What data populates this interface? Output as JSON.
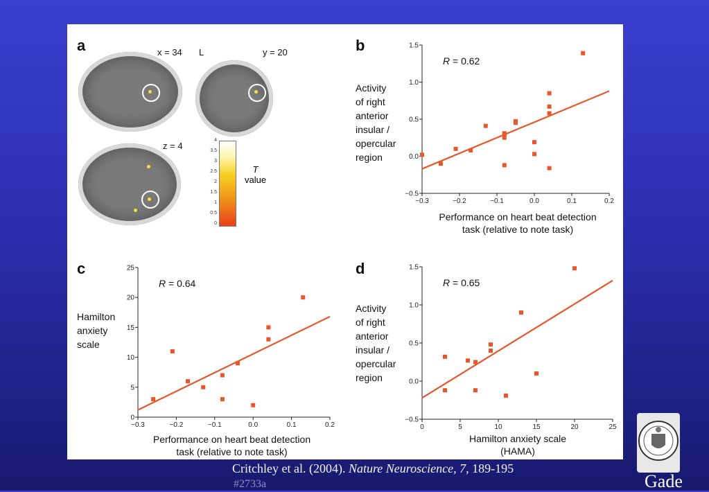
{
  "panel_a": {
    "letter": "a",
    "slice_x": "x = 34",
    "slice_L": "L",
    "slice_y": "y = 20",
    "slice_z": "z = 4",
    "colorbar_ticks": [
      "4",
      "3.5",
      "3",
      "2.5",
      "2",
      "1.5",
      "1",
      "0.5",
      "0"
    ],
    "colorbar_label_T": "T",
    "colorbar_label_value": "value"
  },
  "panel_b": {
    "letter": "b",
    "ylabel_lines": [
      "Activity",
      "of right",
      "anterior",
      "insular /",
      "opercular",
      "region"
    ],
    "xlabel_lines": [
      "Performance on heart beat detection",
      "task (relative to note task)"
    ]
  },
  "panel_c": {
    "letter": "c",
    "ylabel_lines": [
      "Hamilton",
      "anxiety",
      "scale"
    ],
    "xlabel_lines": [
      "Performance on heart beat detection",
      "task (relative to note task)"
    ]
  },
  "panel_d": {
    "letter": "d",
    "ylabel_lines": [
      "Activity",
      "of right",
      "anterior",
      "insular /",
      "opercular",
      "region"
    ],
    "xlabel_lines": [
      "Hamilton anxiety scale",
      "(HAMA)"
    ]
  },
  "chart_data": [
    {
      "panel": "b",
      "type": "scatter",
      "annotation": "R = 0.62",
      "xlim": [
        -0.3,
        0.2
      ],
      "ylim": [
        -0.5,
        1.5
      ],
      "xticks": [
        "−0.3",
        "−0.2",
        "−0.1",
        "0.0",
        "0.1",
        "0.2"
      ],
      "xtick_values": [
        -0.3,
        -0.2,
        -0.1,
        0.0,
        0.1,
        0.2
      ],
      "yticks": [
        "−0.5",
        "0.0",
        "0.5",
        "1.0",
        "1.5"
      ],
      "ytick_values": [
        -0.5,
        0.0,
        0.5,
        1.0,
        1.5
      ],
      "x": [
        -0.3,
        -0.25,
        -0.21,
        -0.17,
        -0.13,
        -0.08,
        -0.08,
        -0.08,
        -0.08,
        -0.05,
        -0.05,
        0.0,
        0.0,
        0.04,
        0.04,
        0.04,
        0.04,
        0.13
      ],
      "y": [
        0.02,
        -0.1,
        0.1,
        0.08,
        0.41,
        0.3,
        0.25,
        0.31,
        -0.12,
        0.45,
        0.47,
        0.19,
        0.03,
        0.85,
        0.67,
        0.58,
        -0.16,
        1.39
      ],
      "fit_line": {
        "x": [
          -0.3,
          0.2
        ],
        "y": [
          -0.17,
          0.88
        ]
      },
      "grid": false,
      "color": "#e8562b"
    },
    {
      "panel": "c",
      "type": "scatter",
      "annotation": "R = 0.64",
      "xlim": [
        -0.3,
        0.2
      ],
      "ylim": [
        0,
        25
      ],
      "xticks": [
        "−0.3",
        "−0.2",
        "−0.1",
        "0.0",
        "0.1",
        "0.2"
      ],
      "xtick_values": [
        -0.3,
        -0.2,
        -0.1,
        0.0,
        0.1,
        0.2
      ],
      "yticks": [
        "0",
        "5",
        "10",
        "15",
        "20",
        "25"
      ],
      "ytick_values": [
        0,
        5,
        10,
        15,
        20,
        25
      ],
      "x": [
        -0.26,
        -0.21,
        -0.17,
        -0.13,
        -0.08,
        -0.08,
        -0.04,
        0.0,
        0.04,
        0.04,
        0.13
      ],
      "y": [
        3,
        11,
        6,
        5,
        7,
        3,
        9,
        2,
        15,
        13,
        20
      ],
      "fit_line": {
        "x": [
          -0.3,
          0.2
        ],
        "y": [
          1.2,
          16.8
        ]
      },
      "grid": false,
      "color": "#e8562b"
    },
    {
      "panel": "d",
      "type": "scatter",
      "annotation": "R = 0.65",
      "xlim": [
        0,
        25
      ],
      "ylim": [
        -0.5,
        1.5
      ],
      "xticks": [
        "0",
        "5",
        "10",
        "15",
        "20",
        "25"
      ],
      "xtick_values": [
        0,
        5,
        10,
        15,
        20,
        25
      ],
      "yticks": [
        "−0.5",
        "0.0",
        "0.5",
        "1.0",
        "1.5"
      ],
      "ytick_values": [
        -0.5,
        0.0,
        0.5,
        1.0,
        1.5
      ],
      "x": [
        3,
        3,
        6,
        7,
        7,
        9,
        9,
        11,
        13,
        15,
        20
      ],
      "y": [
        0.32,
        -0.12,
        0.27,
        0.25,
        -0.12,
        0.48,
        0.4,
        -0.19,
        0.9,
        0.1,
        1.48
      ],
      "fit_line": {
        "x": [
          0,
          25
        ],
        "y": [
          -0.22,
          1.32
        ]
      },
      "grid": false,
      "color": "#e8562b"
    }
  ],
  "citation": {
    "prefix": "Critchley et al. (2004). ",
    "journal": "Nature Neuroscience, 7,",
    "pages": " 189-195"
  },
  "slide_number": "#2733a",
  "institution": "Gade"
}
